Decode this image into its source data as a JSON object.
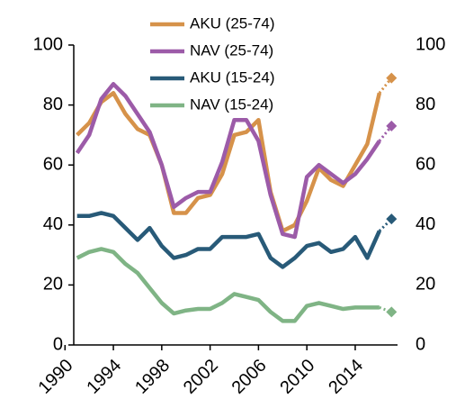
{
  "chart_data": {
    "type": "line",
    "x": [
      1991,
      1992,
      1993,
      1994,
      1995,
      1996,
      1997,
      1998,
      1999,
      2000,
      2001,
      2002,
      2003,
      2004,
      2005,
      2006,
      2007,
      2008,
      2009,
      2010,
      2011,
      2012,
      2013,
      2014,
      2015,
      2016,
      2017
    ],
    "series": [
      {
        "name": "AKU (25-74)",
        "color": "#d6924a",
        "values": [
          70,
          74,
          81,
          84,
          77,
          72,
          70,
          60,
          44,
          44,
          49,
          50,
          57,
          70,
          71,
          75,
          51,
          38,
          40,
          48,
          59,
          55,
          53,
          60,
          67,
          84,
          89
        ]
      },
      {
        "name": "NAV (25-74)",
        "color": "#9c5ba8",
        "values": [
          64,
          70,
          82,
          87,
          83,
          77,
          71,
          60,
          46,
          49,
          51,
          51,
          61,
          75,
          75,
          68,
          50,
          37,
          36,
          56,
          60,
          57,
          54,
          57,
          62,
          68,
          73
        ]
      },
      {
        "name": "AKU (15-24)",
        "color": "#285a78",
        "values": [
          43,
          43,
          44,
          43,
          39,
          35,
          39,
          33,
          29,
          30,
          32,
          32,
          36,
          36,
          36,
          37,
          29,
          26,
          29,
          33,
          34,
          31,
          32,
          36,
          29,
          38,
          42
        ]
      },
      {
        "name": "NAV (15-24)",
        "color": "#7fb485",
        "values": [
          29,
          31,
          32,
          31,
          27,
          24,
          19,
          14,
          10.5,
          11.5,
          12,
          12,
          14,
          17,
          16,
          15,
          11,
          8,
          8,
          13,
          14,
          13,
          12,
          12.5,
          12.5,
          12.5,
          11
        ]
      }
    ],
    "xlim": [
      1990.5,
      2017.5
    ],
    "xticks": [
      1990,
      1994,
      1998,
      2002,
      2006,
      2010,
      2014
    ],
    "ylim": [
      0,
      100
    ],
    "yticks": [
      0,
      20,
      40,
      60,
      80,
      100
    ],
    "legend": "top"
  }
}
